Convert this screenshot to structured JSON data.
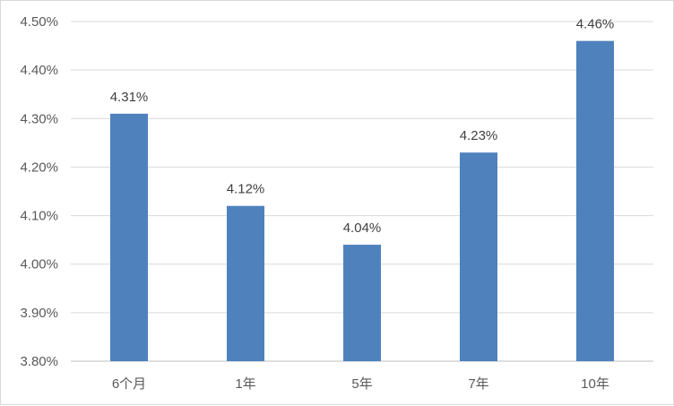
{
  "chart_data": {
    "type": "bar",
    "categories": [
      "6个月",
      "1年",
      "5年",
      "7年",
      "10年"
    ],
    "values": [
      4.31,
      4.12,
      4.04,
      4.23,
      4.46
    ],
    "data_labels": [
      "4.31%",
      "4.12%",
      "4.04%",
      "4.23%",
      "4.46%"
    ],
    "ylim": [
      3.8,
      4.5
    ],
    "y_ticks": [
      3.8,
      3.9,
      4.0,
      4.1,
      4.2,
      4.3,
      4.4,
      4.5
    ],
    "y_tick_labels": [
      "3.80%",
      "3.90%",
      "4.00%",
      "4.10%",
      "4.20%",
      "4.30%",
      "4.40%",
      "4.50%"
    ],
    "grid": true,
    "legend": "none",
    "colors": {
      "bar": "#4f81bd",
      "grid": "#d9d9d9",
      "axis": "#bfbfbf"
    }
  }
}
